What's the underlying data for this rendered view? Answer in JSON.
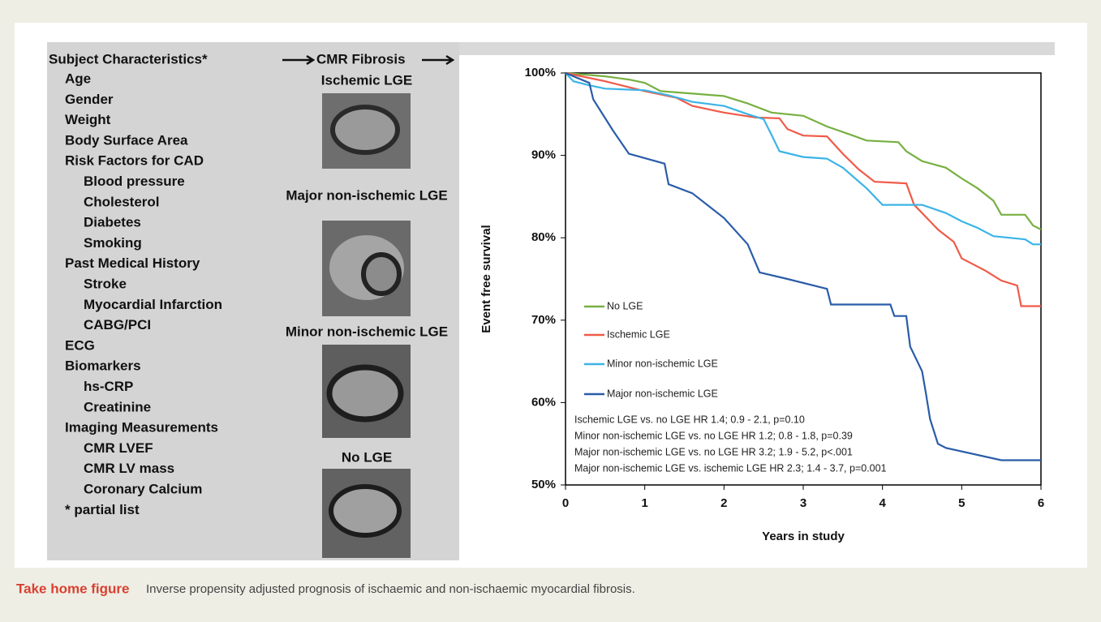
{
  "left_panel": {
    "heading": "Subject Characteristics*",
    "subheading": "CMR Fibrosis",
    "items": [
      {
        "label": "Age"
      },
      {
        "label": "Gender"
      },
      {
        "label": "Weight"
      },
      {
        "label": "Body Surface Area"
      },
      {
        "label": "Risk Factors for CAD",
        "items": [
          "Blood pressure",
          "Cholesterol",
          "Diabetes",
          "Smoking"
        ]
      },
      {
        "label": "Past Medical History",
        "items": [
          "Stroke",
          "Myocardial Infarction",
          "CABG/PCI"
        ]
      },
      {
        "label": "ECG"
      },
      {
        "label": "Biomarkers",
        "items": [
          "hs-CRP",
          "Creatinine"
        ]
      },
      {
        "label": "Imaging Measurements",
        "items": [
          "CMR LVEF",
          "CMR LV mass",
          "Coronary Calcium"
        ]
      },
      {
        "label": "* partial list"
      }
    ],
    "image_labels": [
      {
        "label": "Ischemic LGE",
        "color": "#e05a50"
      },
      {
        "label": "Major non-ischemic LGE",
        "color": "#2a5ca8"
      },
      {
        "label": "Minor non-ischemic LGE",
        "color": "#4ab0d8"
      },
      {
        "label": "No LGE",
        "color": "#6aa84f"
      }
    ]
  },
  "chart_data": {
    "type": "line",
    "ylabel": "Event free survival",
    "xlabel": "Years in study",
    "xlim": [
      0,
      6
    ],
    "xticks": [
      0,
      1,
      2,
      3,
      4,
      5,
      6
    ],
    "ylim": [
      50,
      100
    ],
    "yticks": [
      {
        "value": 50,
        "label": "50%"
      },
      {
        "value": 60,
        "label": "60%"
      },
      {
        "value": 70,
        "label": "70%"
      },
      {
        "value": 80,
        "label": "80%"
      },
      {
        "value": 90,
        "label": "90%"
      },
      {
        "value": 100,
        "label": "100%"
      }
    ],
    "series": [
      {
        "name": "No LGE",
        "color": "#77b041",
        "x": [
          0,
          0.5,
          0.8,
          1,
          1.2,
          1.6,
          2,
          2.3,
          2.6,
          3,
          3.3,
          3.6,
          3.8,
          4.2,
          4.3,
          4.5,
          4.8,
          5,
          5.2,
          5.4,
          5.5,
          5.8,
          5.9,
          6
        ],
        "values": [
          100,
          99.6,
          99.2,
          98.8,
          97.8,
          97.5,
          97.2,
          96.3,
          95.2,
          94.8,
          93.5,
          92.5,
          91.8,
          91.6,
          90.5,
          89.3,
          88.5,
          87.2,
          86,
          84.5,
          82.8,
          82.8,
          81.5,
          81
        ]
      },
      {
        "name": "Ischemic LGE",
        "color": "#f05a48",
        "x": [
          0,
          0.5,
          1,
          1.4,
          1.6,
          2,
          2.4,
          2.7,
          2.8,
          3,
          3.3,
          3.5,
          3.7,
          3.9,
          4.3,
          4.4,
          4.5,
          4.7,
          4.9,
          5,
          5.3,
          5.5,
          5.7,
          5.75,
          6
        ],
        "values": [
          100,
          99,
          97.8,
          97,
          96,
          95.2,
          94.6,
          94.5,
          93.2,
          92.4,
          92.3,
          90.2,
          88.3,
          86.8,
          86.6,
          84,
          83,
          81,
          79.5,
          77.5,
          76,
          74.8,
          74.2,
          71.7,
          71.7
        ]
      },
      {
        "name": "Minor non-ischemic LGE",
        "color": "#3cb4e6",
        "x": [
          0,
          0.1,
          0.3,
          0.5,
          1,
          1.3,
          1.6,
          2,
          2.3,
          2.5,
          2.6,
          2.7,
          3,
          3.3,
          3.5,
          3.8,
          4,
          4.5,
          4.8,
          5,
          5.2,
          5.4,
          5.6,
          5.8,
          5.9,
          6
        ],
        "values": [
          100,
          99,
          98.5,
          98.1,
          97.9,
          97.3,
          96.5,
          96,
          95,
          94.4,
          92.5,
          90.5,
          89.8,
          89.6,
          88.5,
          86,
          84,
          84,
          83,
          82,
          81.2,
          80.2,
          80,
          79.8,
          79.2,
          79.2
        ]
      },
      {
        "name": "Major non-ischemic LGE",
        "color": "#2a5ca8",
        "x": [
          0,
          0.3,
          0.35,
          0.6,
          0.8,
          1.1,
          1.25,
          1.3,
          1.6,
          2,
          2.3,
          2.45,
          2.8,
          3.3,
          3.35,
          4.1,
          4.15,
          4.3,
          4.35,
          4.5,
          4.55,
          4.6,
          4.7,
          4.8,
          5.5,
          6
        ],
        "values": [
          100,
          98.8,
          96.8,
          93,
          90.2,
          89.4,
          89,
          86.5,
          85.4,
          82.4,
          79.2,
          75.8,
          75,
          73.8,
          71.9,
          71.9,
          70.5,
          70.5,
          66.8,
          63.8,
          61,
          58,
          55,
          54.5,
          53,
          53
        ]
      }
    ],
    "annotations": [
      "Ischemic LGE vs. no LGE HR 1.4; 0.9 - 2.1, p=0.10",
      "Minor non-ischemic LGE vs. no LGE HR 1.2; 0.8 - 1.8, p=0.39",
      "Major non-ischemic LGE vs. no LGE HR 3.2; 1.9 - 5.2, p<.001",
      "Major non-ischemic LGE vs. ischemic LGE HR 2.3; 1.4 - 3.7, p=0.001"
    ]
  },
  "caption": {
    "label": "Take home figure",
    "text": "Inverse propensity adjusted prognosis of ischaemic and non-ischaemic myocardial fibrosis."
  }
}
